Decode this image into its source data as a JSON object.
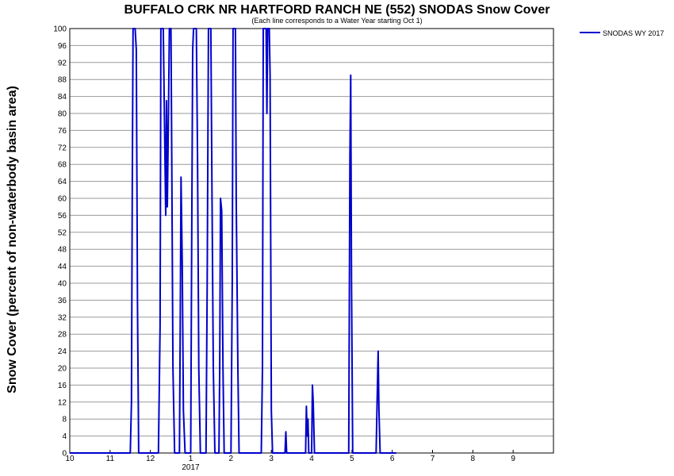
{
  "chart_data": {
    "type": "line",
    "title": "BUFFALO CRK NR HARTFORD RANCH NE (552) SNODAS Snow Cover",
    "subtitle": "(Each line corresponds to a Water Year starting Oct 1)",
    "ylabel": "Snow Cover (percent of non-waterbody basin area)",
    "xlabel": "",
    "ylim": [
      0,
      100
    ],
    "xlim": [
      0,
      12
    ],
    "y_ticks": [
      "0",
      "4",
      "8",
      "12",
      "16",
      "20",
      "24",
      "28",
      "32",
      "36",
      "40",
      "44",
      "48",
      "52",
      "56",
      "60",
      "64",
      "68",
      "72",
      "76",
      "80",
      "84",
      "88",
      "92",
      "96",
      "100"
    ],
    "x_ticks": [
      {
        "x": 0,
        "label": "10"
      },
      {
        "x": 1,
        "label": "11"
      },
      {
        "x": 2,
        "label": "12"
      },
      {
        "x": 3,
        "label": "1"
      },
      {
        "x": 4,
        "label": "2"
      },
      {
        "x": 5,
        "label": "3"
      },
      {
        "x": 6,
        "label": "4"
      },
      {
        "x": 7,
        "label": "5"
      },
      {
        "x": 8,
        "label": "6"
      },
      {
        "x": 9,
        "label": "7"
      },
      {
        "x": 10,
        "label": "8"
      },
      {
        "x": 11,
        "label": "9"
      }
    ],
    "year_label": {
      "x": 3,
      "label": "2017"
    },
    "grid": true,
    "legend_position": "top-right",
    "series": [
      {
        "name": "SNODAS WY 2017",
        "color": "#0000cc",
        "points": [
          [
            0,
            0
          ],
          [
            1.5,
            0
          ],
          [
            1.53,
            12
          ],
          [
            1.55,
            62
          ],
          [
            1.57,
            100
          ],
          [
            1.62,
            100
          ],
          [
            1.65,
            95
          ],
          [
            1.68,
            35
          ],
          [
            1.71,
            0
          ],
          [
            2.2,
            0
          ],
          [
            2.24,
            30
          ],
          [
            2.26,
            100
          ],
          [
            2.32,
            100
          ],
          [
            2.36,
            70
          ],
          [
            2.38,
            56
          ],
          [
            2.4,
            83
          ],
          [
            2.42,
            58
          ],
          [
            2.45,
            80
          ],
          [
            2.47,
            100
          ],
          [
            2.51,
            100
          ],
          [
            2.53,
            70
          ],
          [
            2.56,
            20
          ],
          [
            2.6,
            0
          ],
          [
            2.72,
            0
          ],
          [
            2.74,
            30
          ],
          [
            2.76,
            65
          ],
          [
            2.79,
            45
          ],
          [
            2.82,
            10
          ],
          [
            2.86,
            0
          ],
          [
            2.95,
            0
          ],
          [
            3.0,
            0
          ],
          [
            3.02,
            40
          ],
          [
            3.05,
            95
          ],
          [
            3.07,
            100
          ],
          [
            3.14,
            100
          ],
          [
            3.17,
            70
          ],
          [
            3.2,
            20
          ],
          [
            3.24,
            0
          ],
          [
            3.38,
            0
          ],
          [
            3.41,
            40
          ],
          [
            3.44,
            100
          ],
          [
            3.5,
            100
          ],
          [
            3.53,
            60
          ],
          [
            3.56,
            20
          ],
          [
            3.6,
            0
          ],
          [
            3.7,
            0
          ],
          [
            3.72,
            20
          ],
          [
            3.74,
            60
          ],
          [
            3.77,
            57
          ],
          [
            3.8,
            20
          ],
          [
            3.83,
            0
          ],
          [
            4.0,
            0
          ],
          [
            4.03,
            40
          ],
          [
            4.05,
            100
          ],
          [
            4.11,
            100
          ],
          [
            4.13,
            60
          ],
          [
            4.17,
            20
          ],
          [
            4.2,
            0
          ],
          [
            4.75,
            0
          ],
          [
            4.78,
            20
          ],
          [
            4.8,
            100
          ],
          [
            4.87,
            100
          ],
          [
            4.89,
            80
          ],
          [
            4.91,
            100
          ],
          [
            4.95,
            100
          ],
          [
            4.97,
            89
          ],
          [
            5.0,
            10
          ],
          [
            5.03,
            0
          ],
          [
            5.34,
            0
          ],
          [
            5.36,
            5
          ],
          [
            5.38,
            0
          ],
          [
            5.85,
            0
          ],
          [
            5.87,
            11
          ],
          [
            5.89,
            4
          ],
          [
            5.91,
            8
          ],
          [
            5.93,
            0
          ],
          [
            6.0,
            0
          ],
          [
            6.02,
            16
          ],
          [
            6.04,
            12
          ],
          [
            6.07,
            0
          ],
          [
            6.92,
            0
          ],
          [
            6.95,
            70
          ],
          [
            6.97,
            89
          ],
          [
            6.99,
            40
          ],
          [
            7.02,
            0
          ],
          [
            7.6,
            0
          ],
          [
            7.63,
            15
          ],
          [
            7.65,
            24
          ],
          [
            7.67,
            10
          ],
          [
            7.7,
            0
          ],
          [
            8.1,
            0
          ]
        ]
      }
    ]
  }
}
